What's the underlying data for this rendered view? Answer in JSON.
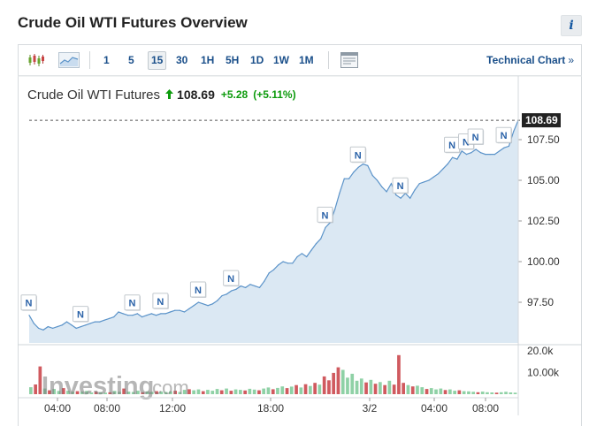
{
  "header": {
    "title": "Crude Oil WTI Futures Overview",
    "info_label": "i"
  },
  "toolbar": {
    "icons": [
      "candlestick-chart-icon",
      "area-chart-icon",
      "layout-icon"
    ],
    "intervals": [
      "1",
      "5",
      "15",
      "30",
      "1H",
      "5H",
      "1D",
      "1W",
      "1M"
    ],
    "active_interval": "15",
    "technical_chart_label": "Technical Chart",
    "chevron": "»"
  },
  "quote": {
    "name": "Crude Oil WTI Futures",
    "price": "108.69",
    "change": "+5.28",
    "change_pct": "(+5.11%)",
    "direction": "up",
    "up_color": "#0d9b0d"
  },
  "watermark": {
    "brand": "Investing",
    "suffix": ".com"
  },
  "chart_data": {
    "type": "area",
    "x_ticks": [
      "04:00",
      "08:00",
      "12:00",
      "18:00",
      "3/2",
      "04:00",
      "08:00"
    ],
    "y_ticks": [
      "97.50",
      "100.00",
      "102.50",
      "105.00",
      "107.50"
    ],
    "y_tick_values": [
      97.5,
      100.0,
      102.5,
      105.0,
      107.5
    ],
    "ylim": [
      95.5,
      109.2
    ],
    "current_value": 108.69,
    "current_label": "108.69",
    "line_color": "#5b93c9",
    "fill_color": "#dbe8f3",
    "price_series": [
      96.7,
      96.2,
      95.9,
      95.8,
      96.0,
      95.9,
      96.0,
      96.1,
      96.3,
      96.1,
      95.9,
      96.0,
      96.1,
      96.2,
      96.3,
      96.3,
      96.4,
      96.5,
      96.6,
      96.9,
      96.8,
      96.7,
      96.7,
      96.8,
      96.6,
      96.7,
      96.8,
      96.7,
      96.8,
      96.8,
      96.9,
      97.0,
      97.0,
      96.9,
      97.1,
      97.3,
      97.5,
      97.4,
      97.3,
      97.4,
      97.6,
      97.9,
      98.0,
      98.2,
      98.3,
      98.5,
      98.4,
      98.6,
      98.5,
      98.4,
      98.8,
      99.3,
      99.5,
      99.8,
      100.0,
      99.9,
      99.9,
      100.3,
      100.5,
      100.3,
      100.7,
      101.1,
      101.4,
      102.1,
      102.4,
      103.2,
      104.2,
      105.1,
      105.1,
      105.5,
      105.8,
      106.0,
      105.9,
      105.3,
      105.0,
      104.6,
      104.3,
      104.8,
      104.1,
      103.9,
      104.2,
      103.9,
      104.4,
      104.8,
      104.9,
      105.0,
      105.2,
      105.4,
      105.7,
      106.0,
      106.4,
      106.3,
      106.8,
      106.6,
      106.7,
      106.9,
      106.7,
      106.6,
      106.6,
      106.6,
      106.8,
      107.0,
      107.1,
      108.0,
      108.69
    ],
    "news_markers": [
      {
        "label": "N",
        "index": 0
      },
      {
        "label": "N",
        "index": 11
      },
      {
        "label": "N",
        "index": 22
      },
      {
        "label": "N",
        "index": 28
      },
      {
        "label": "N",
        "index": 36
      },
      {
        "label": "N",
        "index": 43
      },
      {
        "label": "N",
        "index": 63
      },
      {
        "label": "N",
        "index": 70
      },
      {
        "label": "N",
        "index": 79
      },
      {
        "label": "N",
        "index": 90
      },
      {
        "label": "N",
        "index": 93
      },
      {
        "label": "N",
        "index": 95
      },
      {
        "label": "N",
        "index": 101
      }
    ],
    "volume_ticks": [
      "10.00k",
      "20.0k"
    ],
    "volume_tick_values": [
      10000,
      20000
    ],
    "volume_max": 22000,
    "volume_up_color": "#8fd1a6",
    "volume_down_color": "#d05a5f",
    "volume": [
      {
        "v": 3200,
        "up": true
      },
      {
        "v": 4500,
        "up": false
      },
      {
        "v": 12800,
        "up": false
      },
      {
        "v": 2600,
        "up": true
      },
      {
        "v": 1800,
        "up": false
      },
      {
        "v": 2400,
        "up": true
      },
      {
        "v": 1500,
        "up": true
      },
      {
        "v": 2800,
        "up": false
      },
      {
        "v": 1600,
        "up": true
      },
      {
        "v": 1200,
        "up": true
      },
      {
        "v": 1400,
        "up": false
      },
      {
        "v": 1200,
        "up": true
      },
      {
        "v": 1500,
        "up": true
      },
      {
        "v": 800,
        "up": true
      },
      {
        "v": 1200,
        "up": false
      },
      {
        "v": 900,
        "up": true
      },
      {
        "v": 700,
        "up": true
      },
      {
        "v": 900,
        "up": false
      },
      {
        "v": 1500,
        "up": true
      },
      {
        "v": 1100,
        "up": true
      },
      {
        "v": 2600,
        "up": false
      },
      {
        "v": 1200,
        "up": true
      },
      {
        "v": 1000,
        "up": true
      },
      {
        "v": 1600,
        "up": true
      },
      {
        "v": 900,
        "up": false
      },
      {
        "v": 1300,
        "up": true
      },
      {
        "v": 1100,
        "up": true
      },
      {
        "v": 1400,
        "up": false
      },
      {
        "v": 1200,
        "up": true
      },
      {
        "v": 1000,
        "up": true
      },
      {
        "v": 1300,
        "up": true
      },
      {
        "v": 1600,
        "up": false
      },
      {
        "v": 1000,
        "up": true
      },
      {
        "v": 2000,
        "up": true
      },
      {
        "v": 2300,
        "up": false
      },
      {
        "v": 1800,
        "up": true
      },
      {
        "v": 2200,
        "up": true
      },
      {
        "v": 1400,
        "up": false
      },
      {
        "v": 2000,
        "up": true
      },
      {
        "v": 1600,
        "up": true
      },
      {
        "v": 2400,
        "up": true
      },
      {
        "v": 1800,
        "up": false
      },
      {
        "v": 2600,
        "up": true
      },
      {
        "v": 1600,
        "up": false
      },
      {
        "v": 2200,
        "up": true
      },
      {
        "v": 2000,
        "up": true
      },
      {
        "v": 1700,
        "up": false
      },
      {
        "v": 2500,
        "up": true
      },
      {
        "v": 2100,
        "up": true
      },
      {
        "v": 1800,
        "up": false
      },
      {
        "v": 2600,
        "up": true
      },
      {
        "v": 3100,
        "up": true
      },
      {
        "v": 2300,
        "up": false
      },
      {
        "v": 2900,
        "up": true
      },
      {
        "v": 3600,
        "up": true
      },
      {
        "v": 2800,
        "up": false
      },
      {
        "v": 3500,
        "up": true
      },
      {
        "v": 4200,
        "up": false
      },
      {
        "v": 3100,
        "up": true
      },
      {
        "v": 4600,
        "up": false
      },
      {
        "v": 3800,
        "up": true
      },
      {
        "v": 5200,
        "up": false
      },
      {
        "v": 4400,
        "up": true
      },
      {
        "v": 8200,
        "up": false
      },
      {
        "v": 6400,
        "up": false
      },
      {
        "v": 9800,
        "up": false
      },
      {
        "v": 12400,
        "up": false
      },
      {
        "v": 11200,
        "up": true
      },
      {
        "v": 7600,
        "up": true
      },
      {
        "v": 9400,
        "up": true
      },
      {
        "v": 6200,
        "up": true
      },
      {
        "v": 7200,
        "up": true
      },
      {
        "v": 5400,
        "up": false
      },
      {
        "v": 6600,
        "up": true
      },
      {
        "v": 4800,
        "up": false
      },
      {
        "v": 5600,
        "up": true
      },
      {
        "v": 4200,
        "up": false
      },
      {
        "v": 6200,
        "up": true
      },
      {
        "v": 4400,
        "up": false
      },
      {
        "v": 18000,
        "up": false
      },
      {
        "v": 5200,
        "up": false
      },
      {
        "v": 4200,
        "up": true
      },
      {
        "v": 3600,
        "up": false
      },
      {
        "v": 3900,
        "up": true
      },
      {
        "v": 3200,
        "up": true
      },
      {
        "v": 2400,
        "up": false
      },
      {
        "v": 2800,
        "up": true
      },
      {
        "v": 2200,
        "up": true
      },
      {
        "v": 2600,
        "up": true
      },
      {
        "v": 1900,
        "up": false
      },
      {
        "v": 2200,
        "up": true
      },
      {
        "v": 1600,
        "up": true
      },
      {
        "v": 1800,
        "up": false
      },
      {
        "v": 1400,
        "up": true
      },
      {
        "v": 1300,
        "up": true
      },
      {
        "v": 1100,
        "up": true
      },
      {
        "v": 900,
        "up": false
      },
      {
        "v": 1200,
        "up": true
      },
      {
        "v": 900,
        "up": true
      },
      {
        "v": 800,
        "up": true
      },
      {
        "v": 700,
        "up": false
      },
      {
        "v": 900,
        "up": true
      },
      {
        "v": 1100,
        "up": true
      },
      {
        "v": 800,
        "up": true
      },
      {
        "v": 700,
        "up": true
      }
    ]
  }
}
